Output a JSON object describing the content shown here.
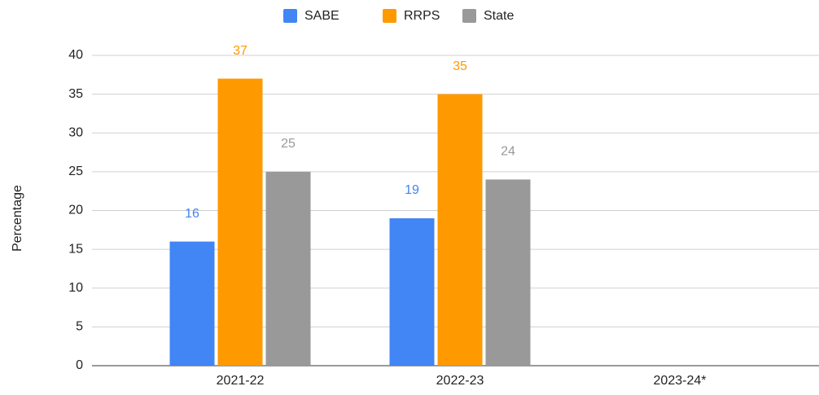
{
  "chart_data": {
    "type": "bar",
    "y_label": "Percentage",
    "categories": [
      "2021-22",
      "2022-23",
      "2023-24*"
    ],
    "series": [
      {
        "name": "SABE",
        "color": "#4285f4",
        "values": [
          16,
          19,
          null
        ]
      },
      {
        "name": "RRPS",
        "color": "#ff9900",
        "values": [
          37,
          35,
          null
        ]
      },
      {
        "name": "State",
        "color": "#999999",
        "values": [
          25,
          24,
          null
        ]
      }
    ],
    "ylim": [
      0,
      40
    ],
    "yticks": [
      0,
      5,
      10,
      15,
      20,
      25,
      30,
      35,
      40
    ],
    "grid": true,
    "legend": "top"
  }
}
